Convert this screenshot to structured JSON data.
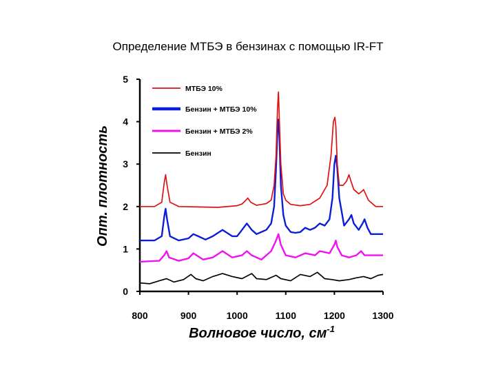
{
  "slide": {
    "title": "Определение МТБЭ в бензинах с помощью IR-FT"
  },
  "chart_data": {
    "type": "line",
    "title": "Определение МТБЭ в бензинах с помощью IR-FT",
    "xlabel": "Волновое число, см",
    "xlabel_sup": "-1",
    "ylabel": "Опт. плотность",
    "xlim": [
      800,
      1300
    ],
    "ylim": [
      0,
      5
    ],
    "xticks": [
      800,
      900,
      1000,
      1100,
      1200,
      1300
    ],
    "yticks": [
      0,
      1,
      2,
      3,
      4,
      5
    ],
    "grid": false,
    "legend_position": "top-left",
    "series": [
      {
        "name": "МТБЭ 10%",
        "color": "#e01010",
        "line": "thin",
        "x": [
          800,
          830,
          845,
          850,
          853,
          856,
          862,
          880,
          920,
          960,
          1000,
          1010,
          1018,
          1022,
          1028,
          1040,
          1060,
          1070,
          1076,
          1080,
          1083,
          1085,
          1087,
          1090,
          1095,
          1100,
          1110,
          1130,
          1150,
          1170,
          1185,
          1193,
          1198,
          1201,
          1203,
          1206,
          1210,
          1218,
          1225,
          1230,
          1234,
          1240,
          1250,
          1256,
          1260,
          1264,
          1270,
          1285,
          1300
        ],
        "values": [
          2.0,
          2.0,
          2.1,
          2.55,
          2.75,
          2.5,
          2.1,
          2.0,
          1.99,
          1.98,
          2.02,
          2.06,
          2.15,
          2.2,
          2.1,
          2.03,
          2.07,
          2.15,
          2.5,
          3.2,
          4.3,
          4.7,
          4.0,
          3.0,
          2.3,
          2.15,
          2.05,
          2.02,
          2.05,
          2.2,
          2.5,
          3.2,
          4.0,
          4.1,
          3.9,
          3.0,
          2.5,
          2.5,
          2.6,
          2.75,
          2.6,
          2.4,
          2.3,
          2.35,
          2.4,
          2.3,
          2.15,
          2.0,
          2.0
        ]
      },
      {
        "name": "Бензин + МТБЭ 10%",
        "color": "#0a1ed8",
        "line": "thick",
        "x": [
          800,
          830,
          845,
          850,
          853,
          856,
          862,
          880,
          900,
          910,
          920,
          935,
          950,
          970,
          990,
          1000,
          1010,
          1020,
          1030,
          1040,
          1060,
          1070,
          1076,
          1080,
          1083,
          1085,
          1087,
          1090,
          1095,
          1100,
          1110,
          1120,
          1130,
          1140,
          1150,
          1160,
          1170,
          1180,
          1190,
          1196,
          1200,
          1203,
          1206,
          1210,
          1220,
          1230,
          1235,
          1240,
          1250,
          1258,
          1262,
          1268,
          1275,
          1290,
          1300
        ],
        "values": [
          1.2,
          1.2,
          1.3,
          1.75,
          1.95,
          1.7,
          1.3,
          1.2,
          1.25,
          1.35,
          1.3,
          1.22,
          1.3,
          1.45,
          1.3,
          1.3,
          1.45,
          1.6,
          1.45,
          1.35,
          1.45,
          1.6,
          2.0,
          2.9,
          3.8,
          4.05,
          3.6,
          2.5,
          1.8,
          1.55,
          1.4,
          1.38,
          1.4,
          1.5,
          1.45,
          1.5,
          1.6,
          1.55,
          1.7,
          2.2,
          3.0,
          3.2,
          2.9,
          2.2,
          1.55,
          1.7,
          1.8,
          1.6,
          1.45,
          1.6,
          1.7,
          1.5,
          1.35,
          1.35,
          1.35
        ]
      },
      {
        "name": "Бензин + МТБЭ 2%",
        "color": "#f010f0",
        "line": "thick",
        "x": [
          800,
          840,
          850,
          855,
          860,
          880,
          900,
          910,
          930,
          950,
          970,
          990,
          1010,
          1020,
          1030,
          1050,
          1070,
          1080,
          1085,
          1090,
          1100,
          1120,
          1140,
          1160,
          1170,
          1190,
          1200,
          1203,
          1206,
          1215,
          1230,
          1245,
          1255,
          1262,
          1275,
          1300
        ],
        "values": [
          0.7,
          0.72,
          0.85,
          0.95,
          0.8,
          0.72,
          0.78,
          0.9,
          0.75,
          0.8,
          0.95,
          0.8,
          0.85,
          0.95,
          0.85,
          0.75,
          0.95,
          1.2,
          1.35,
          1.1,
          0.85,
          0.8,
          0.9,
          0.85,
          0.95,
          0.9,
          1.1,
          1.2,
          1.05,
          0.85,
          0.8,
          0.85,
          0.95,
          0.85,
          0.85,
          0.85
        ]
      },
      {
        "name": "Бензин",
        "color": "#000000",
        "line": "thin",
        "x": [
          800,
          820,
          840,
          855,
          870,
          890,
          905,
          915,
          930,
          950,
          970,
          990,
          1010,
          1030,
          1040,
          1060,
          1080,
          1090,
          1110,
          1130,
          1150,
          1165,
          1180,
          1195,
          1210,
          1230,
          1245,
          1260,
          1275,
          1290,
          1300
        ],
        "values": [
          0.2,
          0.18,
          0.25,
          0.3,
          0.22,
          0.28,
          0.4,
          0.3,
          0.25,
          0.35,
          0.42,
          0.35,
          0.3,
          0.42,
          0.3,
          0.28,
          0.38,
          0.3,
          0.25,
          0.4,
          0.35,
          0.45,
          0.3,
          0.28,
          0.25,
          0.28,
          0.32,
          0.35,
          0.3,
          0.38,
          0.4
        ]
      }
    ]
  }
}
